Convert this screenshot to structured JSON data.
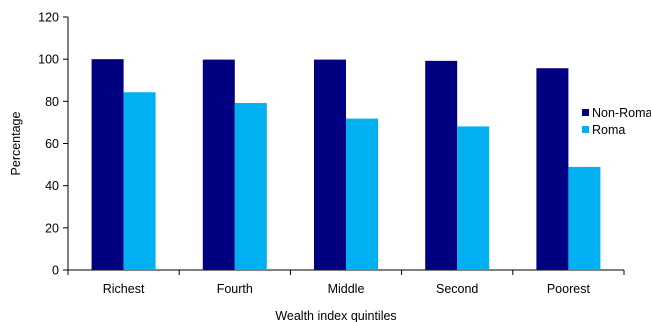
{
  "chart_data": {
    "type": "bar",
    "title": "",
    "xlabel": "Wealth index quintiles",
    "ylabel": "Percentage",
    "ylim": [
      0,
      120
    ],
    "yticks": [
      0,
      20,
      40,
      60,
      80,
      100,
      120
    ],
    "categories": [
      "Richest",
      "Fourth",
      "Middle",
      "Second",
      "Poorest"
    ],
    "series": [
      {
        "name": "Non-Roma",
        "color": "#000080",
        "values": [
          100,
          99.8,
          99.8,
          99.2,
          95.7
        ]
      },
      {
        "name": "Roma",
        "color": "#00B0F0",
        "values": [
          84.3,
          79.2,
          71.8,
          68.1,
          48.9
        ]
      }
    ],
    "grid": false,
    "legend_position": "right"
  }
}
